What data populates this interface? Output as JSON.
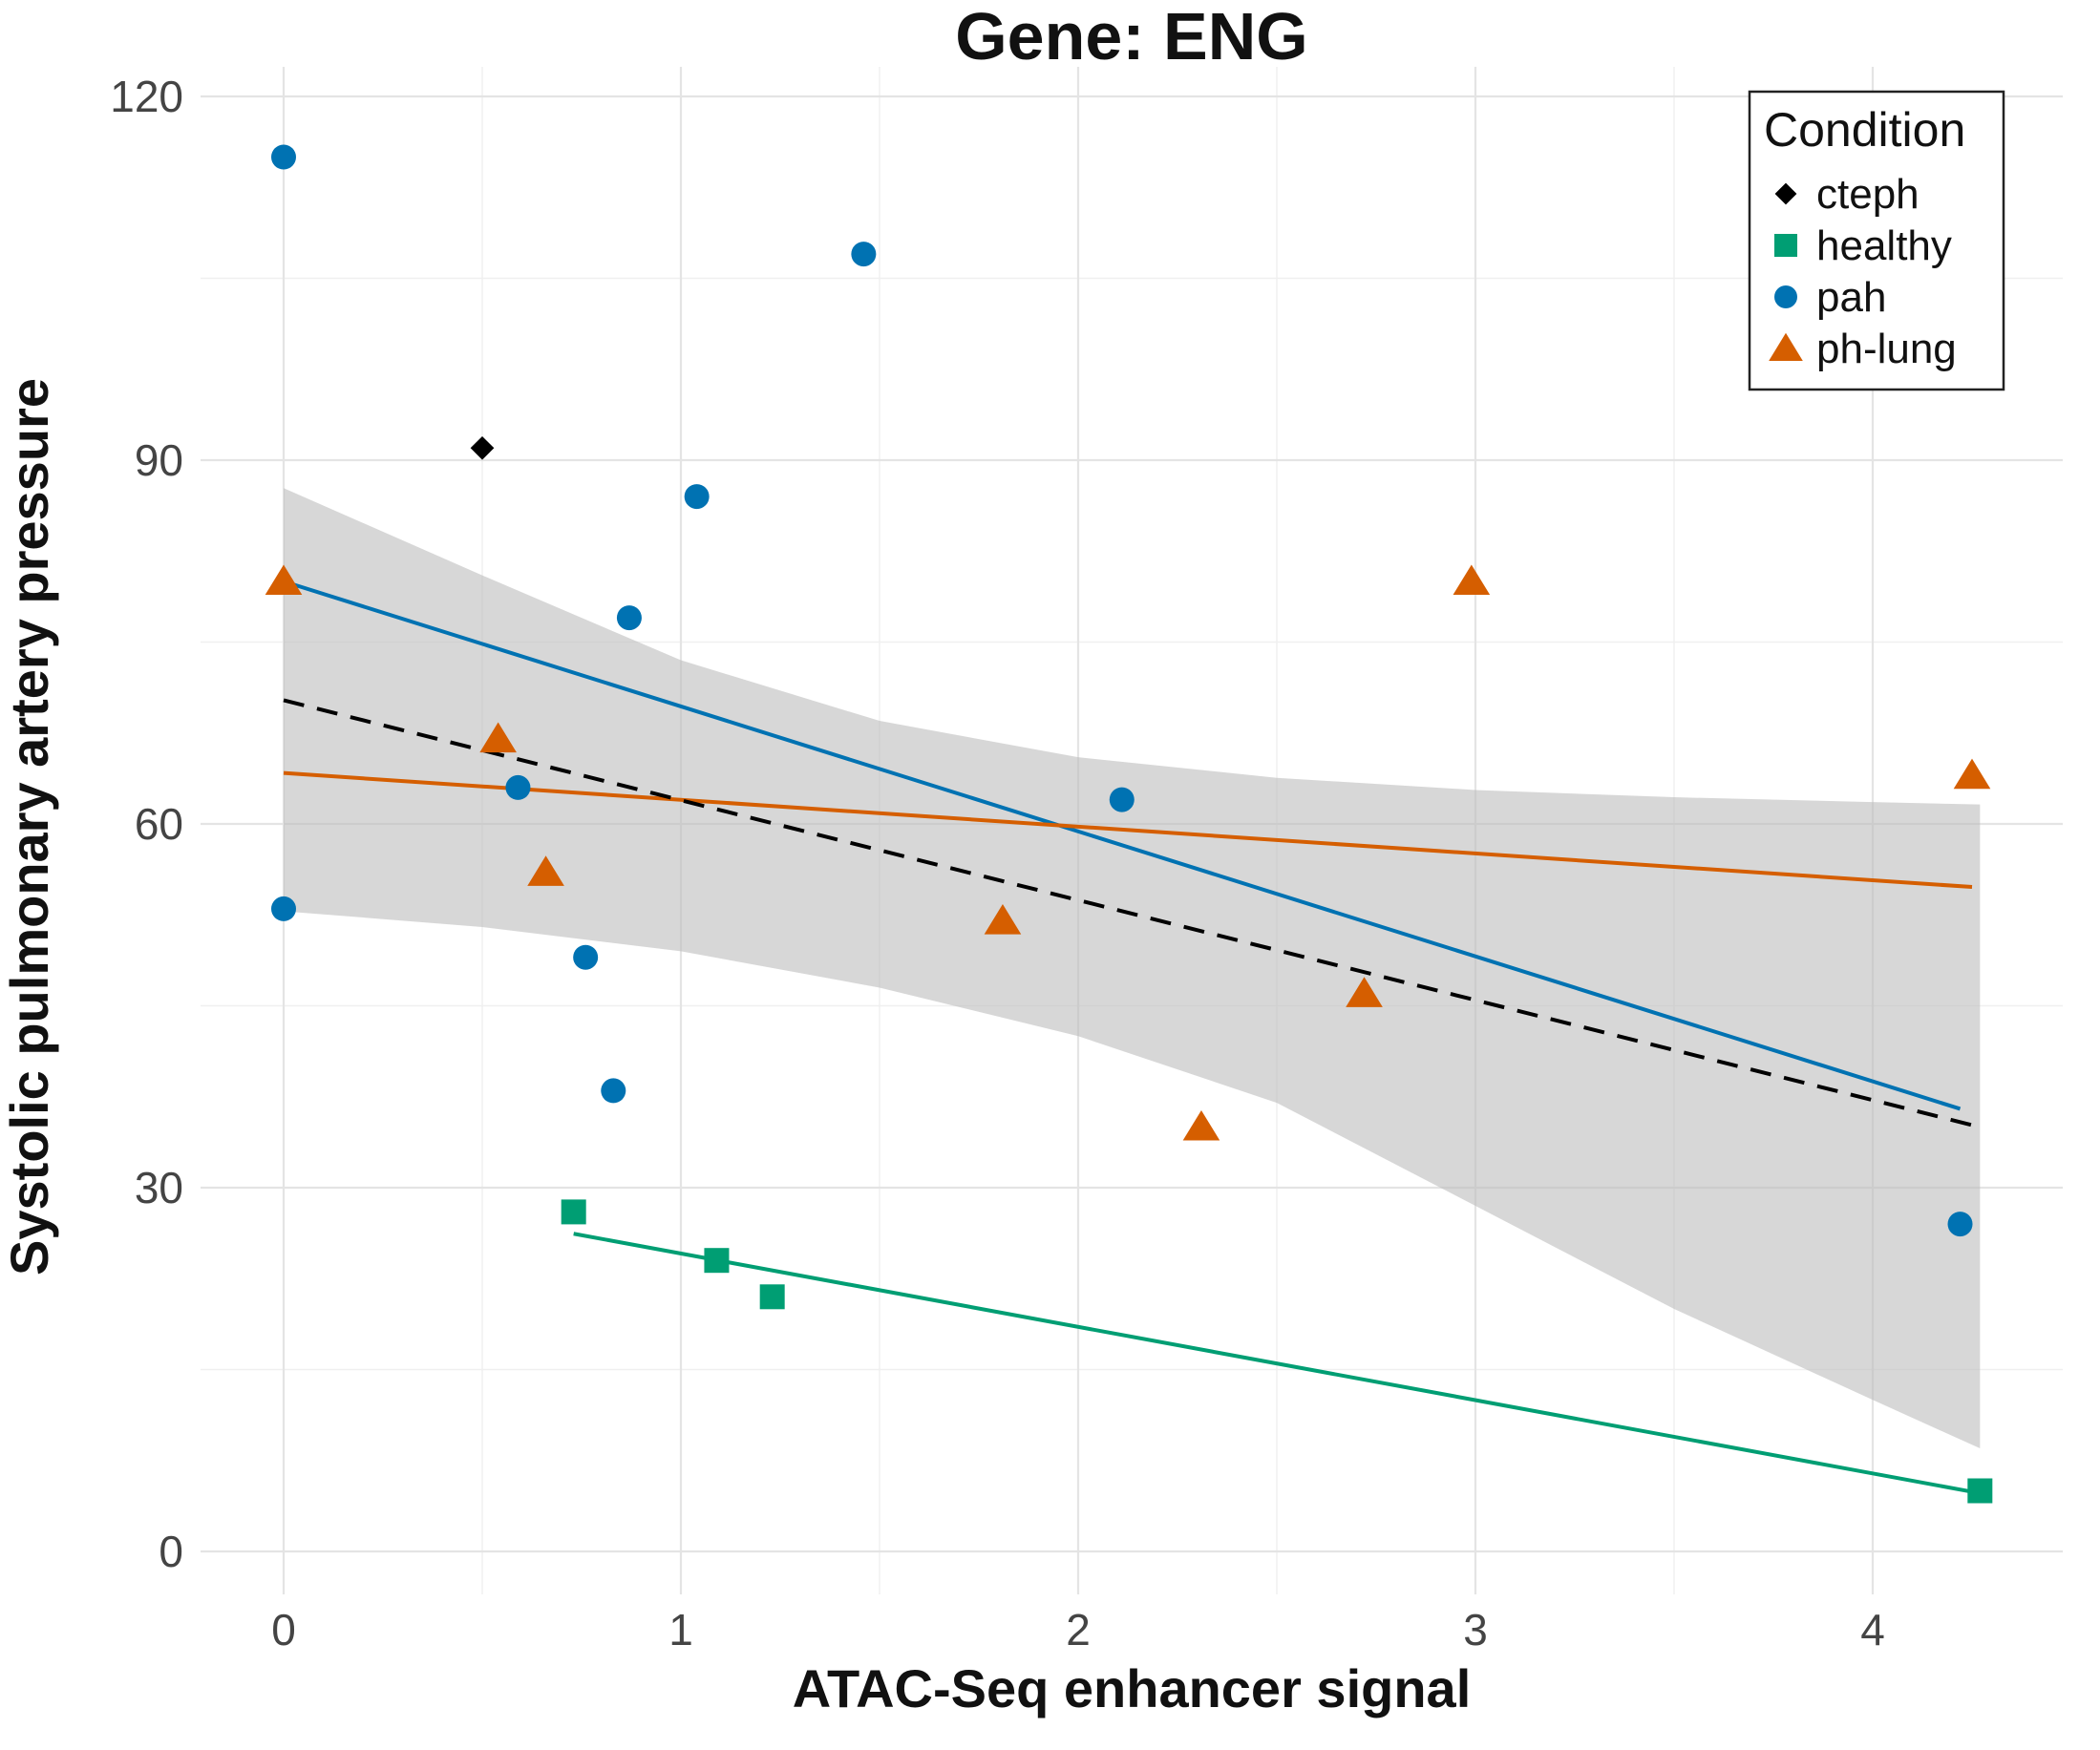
{
  "chart_data": {
    "type": "scatter",
    "title": "Gene: ENG",
    "xlabel": "ATAC-Seq enhancer signal",
    "ylabel": "Systolic pulmonary artery pressure",
    "xlim": [
      -0.2,
      4.5
    ],
    "ylim": [
      -3,
      122
    ],
    "x_ticks": [
      0,
      1,
      2,
      3,
      4
    ],
    "y_ticks": [
      0,
      30,
      60,
      90,
      120
    ],
    "x_tick_labels": [
      "0",
      "1",
      "2",
      "3",
      "4"
    ],
    "y_tick_labels": [
      "0",
      "30",
      "60",
      "90",
      "120"
    ],
    "grid": true,
    "legend": {
      "title": "Condition",
      "placement": "top-right",
      "entries": [
        {
          "label": "cteph",
          "shape": "diamond",
          "color": "#000000"
        },
        {
          "label": "healthy",
          "shape": "square",
          "color": "#009E73"
        },
        {
          "label": "pah",
          "shape": "circle",
          "color": "#0072B2"
        },
        {
          "label": "ph-lung",
          "shape": "triangle",
          "color": "#D55E00"
        }
      ]
    },
    "series": [
      {
        "name": "cteph",
        "shape": "diamond",
        "color": "#000000",
        "points": [
          [
            0.5,
            91
          ]
        ]
      },
      {
        "name": "healthy",
        "shape": "square",
        "color": "#009E73",
        "points": [
          [
            0.73,
            28
          ],
          [
            1.09,
            24
          ],
          [
            1.23,
            21
          ],
          [
            4.27,
            5
          ]
        ],
        "fit": [
          [
            0.73,
            26.2
          ],
          [
            4.27,
            4.8
          ]
        ]
      },
      {
        "name": "pah",
        "shape": "circle",
        "color": "#0072B2",
        "points": [
          [
            0,
            115
          ],
          [
            0,
            53
          ],
          [
            0.59,
            63
          ],
          [
            0.76,
            49
          ],
          [
            0.83,
            38
          ],
          [
            0.87,
            77
          ],
          [
            1.04,
            87
          ],
          [
            1.46,
            107
          ],
          [
            2.11,
            62
          ],
          [
            4.22,
            27
          ]
        ],
        "fit": [
          [
            0,
            80
          ],
          [
            4.22,
            36.5
          ]
        ]
      },
      {
        "name": "ph-lung",
        "shape": "triangle",
        "color": "#D55E00",
        "points": [
          [
            0,
            80
          ],
          [
            0.54,
            67
          ],
          [
            0.66,
            56
          ],
          [
            1.81,
            52
          ],
          [
            2.31,
            35
          ],
          [
            2.72,
            46
          ],
          [
            2.99,
            80
          ],
          [
            4.25,
            64
          ]
        ],
        "fit": [
          [
            0,
            64.2
          ],
          [
            4.25,
            54.8
          ]
        ]
      }
    ],
    "overall_fit": {
      "style": "dashed",
      "color": "#000000",
      "line": [
        [
          0,
          70.2
        ],
        [
          4.27,
          35
        ]
      ],
      "ribbon_color": "#bdbdbd",
      "ribbon": [
        [
          0,
          52.8,
          87.7
        ],
        [
          0.5,
          51.5,
          80.5
        ],
        [
          1.0,
          49.5,
          73.5
        ],
        [
          1.5,
          46.5,
          68.5
        ],
        [
          2.0,
          42.5,
          65.5
        ],
        [
          2.5,
          37.0,
          63.8
        ],
        [
          3.0,
          28.5,
          62.8
        ],
        [
          3.5,
          20.0,
          62.2
        ],
        [
          4.0,
          12.5,
          61.8
        ],
        [
          4.27,
          8.5,
          61.6
        ]
      ]
    }
  }
}
